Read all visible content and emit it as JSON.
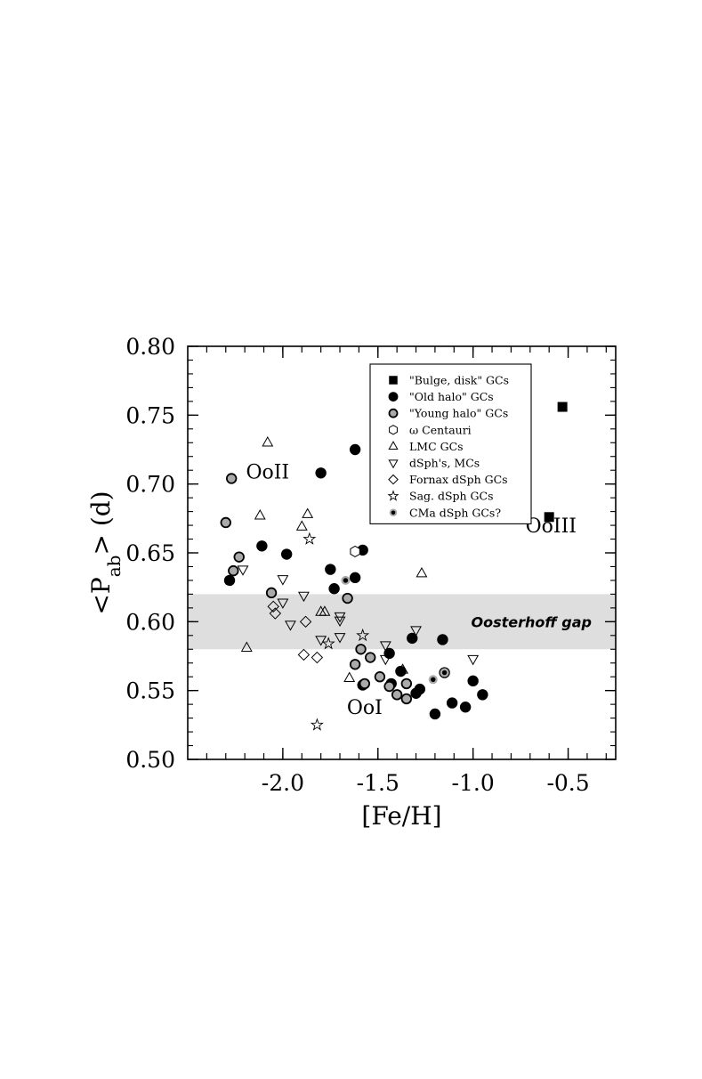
{
  "chart_data": {
    "type": "scatter",
    "xlabel": "[Fe/H]",
    "ylabel": "<P",
    "ylabel_sub": "ab",
    "ylabel_suffix": "> (d)",
    "xlim": [
      -2.5,
      -0.25
    ],
    "ylim": [
      0.5,
      0.8
    ],
    "x_ticks": [
      -2.0,
      -1.5,
      -1.0,
      -0.5
    ],
    "x_tick_labels": [
      "-2.0",
      "-1.5",
      "-1.0",
      "-0.5"
    ],
    "y_ticks": [
      0.5,
      0.55,
      0.6,
      0.65,
      0.7,
      0.75,
      0.8
    ],
    "y_tick_labels": [
      "0.50",
      "0.55",
      "0.60",
      "0.65",
      "0.70",
      "0.75",
      "0.80"
    ],
    "grid": false,
    "legend_position": "top-right",
    "band": {
      "y0": 0.58,
      "y1": 0.62,
      "label": "Oosterhoff gap",
      "color": "#dedede"
    },
    "annotations": [
      {
        "text": "OoII",
        "x": -2.08,
        "y": 0.704
      },
      {
        "text": "OoI",
        "x": -1.57,
        "y": 0.533
      },
      {
        "text": "OoIII",
        "x": -0.59,
        "y": 0.665
      }
    ],
    "series": [
      {
        "name": "\"Bulge, disk\" GCs",
        "marker": "square",
        "fill": "#000000",
        "points": [
          [
            -0.53,
            0.756
          ],
          [
            -0.6,
            0.676
          ]
        ]
      },
      {
        "name": "\"Old halo\" GCs",
        "marker": "circle",
        "fill": "#000000",
        "points": [
          [
            -1.62,
            0.725
          ],
          [
            -2.11,
            0.655
          ],
          [
            -1.98,
            0.649
          ],
          [
            -2.28,
            0.63
          ],
          [
            -1.62,
            0.632
          ],
          [
            -1.58,
            0.652
          ],
          [
            -1.75,
            0.638
          ],
          [
            -1.8,
            0.708
          ],
          [
            -1.73,
            0.624
          ],
          [
            -1.32,
            0.588
          ],
          [
            -1.16,
            0.587
          ],
          [
            -1.38,
            0.564
          ],
          [
            -1.44,
            0.577
          ],
          [
            -1.43,
            0.555
          ],
          [
            -1.3,
            0.548
          ],
          [
            -1.28,
            0.551
          ],
          [
            -1.2,
            0.533
          ],
          [
            -1.11,
            0.541
          ],
          [
            -1.04,
            0.538
          ],
          [
            -0.95,
            0.547
          ],
          [
            -1.0,
            0.557
          ],
          [
            -1.15,
            0.563
          ],
          [
            -1.58,
            0.554
          ]
        ]
      },
      {
        "name": "\"Young halo\" GCs",
        "marker": "circle",
        "fill": "#aaaaaa",
        "points": [
          [
            -2.3,
            0.672
          ],
          [
            -2.27,
            0.704
          ],
          [
            -2.26,
            0.637
          ],
          [
            -2.23,
            0.647
          ],
          [
            -2.06,
            0.621
          ],
          [
            -1.66,
            0.617
          ],
          [
            -1.62,
            0.569
          ],
          [
            -1.59,
            0.58
          ],
          [
            -1.57,
            0.555
          ],
          [
            -1.54,
            0.574
          ],
          [
            -1.49,
            0.56
          ],
          [
            -1.44,
            0.553
          ],
          [
            -1.4,
            0.547
          ],
          [
            -1.35,
            0.544
          ],
          [
            -1.35,
            0.555
          ]
        ]
      },
      {
        "name": "ω Centauri",
        "marker": "hexagon",
        "fill": "none",
        "points": [
          [
            -1.62,
            0.651
          ]
        ]
      },
      {
        "name": "LMC GCs",
        "marker": "triangle-up",
        "fill": "none",
        "points": [
          [
            -2.08,
            0.73
          ],
          [
            -2.12,
            0.677
          ],
          [
            -1.87,
            0.678
          ],
          [
            -1.9,
            0.669
          ],
          [
            -2.19,
            0.581
          ],
          [
            -1.8,
            0.607
          ],
          [
            -1.78,
            0.607
          ],
          [
            -1.65,
            0.559
          ],
          [
            -1.27,
            0.635
          ],
          [
            -1.37,
            0.565
          ]
        ]
      },
      {
        "name": "dSph's, MCs",
        "marker": "triangle-down",
        "fill": "none",
        "points": [
          [
            -2.21,
            0.638
          ],
          [
            -2.0,
            0.631
          ],
          [
            -2.0,
            0.614
          ],
          [
            -1.89,
            0.619
          ],
          [
            -1.96,
            0.598
          ],
          [
            -1.8,
            0.587
          ],
          [
            -1.7,
            0.604
          ],
          [
            -1.7,
            0.601
          ],
          [
            -1.7,
            0.589
          ],
          [
            -1.46,
            0.583
          ],
          [
            -1.46,
            0.573
          ],
          [
            -1.3,
            0.594
          ],
          [
            -1.0,
            0.573
          ]
        ]
      },
      {
        "name": "Fornax dSph GCs",
        "marker": "diamond",
        "fill": "none",
        "points": [
          [
            -2.05,
            0.611
          ],
          [
            -2.04,
            0.606
          ],
          [
            -1.88,
            0.6
          ],
          [
            -1.89,
            0.576
          ],
          [
            -1.82,
            0.574
          ]
        ]
      },
      {
        "name": "Sag. dSph GCs",
        "marker": "star",
        "fill": "none",
        "points": [
          [
            -1.86,
            0.66
          ],
          [
            -1.76,
            0.584
          ],
          [
            -1.58,
            0.59
          ],
          [
            -1.82,
            0.525
          ]
        ]
      },
      {
        "name": "CMa dSph GCs?",
        "marker": "circle-dot",
        "fill": "#aaaaaa",
        "points": [
          [
            -1.67,
            0.63
          ],
          [
            -1.21,
            0.558
          ],
          [
            -1.15,
            0.563
          ]
        ]
      }
    ]
  }
}
